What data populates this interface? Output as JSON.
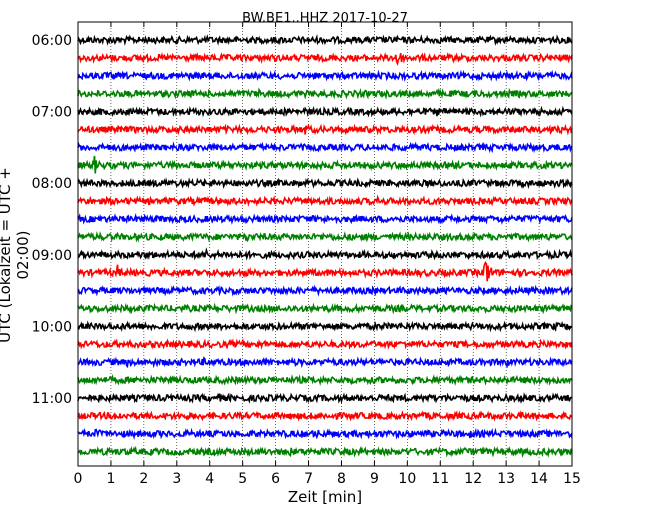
{
  "chart_data": {
    "type": "line",
    "title": "BW.BE1..HHZ 2017-10-27",
    "xlabel": "Zeit  [min]",
    "ylabel": "UTC (Lokalzeit = UTC + 02:00)",
    "xlim": [
      0,
      15
    ],
    "x_ticks": [
      "0",
      "1",
      "2",
      "3",
      "4",
      "5",
      "6",
      "7",
      "8",
      "9",
      "10",
      "11",
      "12",
      "13",
      "14",
      "15"
    ],
    "y_ticks": [
      {
        "label": "06:00",
        "row": 0
      },
      {
        "label": "07:00",
        "row": 4
      },
      {
        "label": "08:00",
        "row": 8
      },
      {
        "label": "09:00",
        "row": 12
      },
      {
        "label": "10:00",
        "row": 16
      },
      {
        "label": "11:00",
        "row": 20
      }
    ],
    "grid": "vertical dotted",
    "color_cycle": [
      "#000000",
      "#ff0000",
      "#0000ff",
      "#008000"
    ],
    "rows": [
      {
        "start": "06:00",
        "events": [
          [
            1.1,
            0.25
          ],
          [
            2.3,
            0.2
          ],
          [
            9.5,
            0.15
          ],
          [
            10.6,
            0.15
          ],
          [
            15.0,
            0.2
          ]
        ]
      },
      {
        "start": "06:15",
        "events": [
          [
            0.3,
            0.2
          ],
          [
            9.65,
            1.0
          ],
          [
            10.4,
            0.15
          ],
          [
            11.4,
            0.15
          ],
          [
            14.6,
            0.2
          ]
        ]
      },
      {
        "start": "06:30",
        "events": [
          [
            1.0,
            0.15
          ],
          [
            5.0,
            0.15
          ],
          [
            10.0,
            0.15
          ],
          [
            11.9,
            0.15
          ],
          [
            14.3,
            0.15
          ]
        ]
      },
      {
        "start": "06:45",
        "events": [
          [
            5.5,
            0.2
          ],
          [
            7.0,
            0.15
          ],
          [
            13.4,
            0.15
          ]
        ]
      },
      {
        "start": "07:00",
        "events": [
          [
            0.7,
            0.2
          ],
          [
            2.6,
            0.15
          ],
          [
            6.1,
            0.2
          ],
          [
            10.9,
            0.25
          ],
          [
            14.5,
            0.2
          ]
        ]
      },
      {
        "start": "07:15",
        "events": [
          [
            6.9,
            0.4
          ],
          [
            9.0,
            0.15
          ],
          [
            11.0,
            0.2
          ],
          [
            14.3,
            0.25
          ]
        ]
      },
      {
        "start": "07:30",
        "events": [
          [
            6.3,
            0.15
          ],
          [
            8.0,
            0.15
          ],
          [
            10.2,
            0.2
          ],
          [
            12.4,
            0.15
          ],
          [
            14.0,
            0.15
          ]
        ]
      },
      {
        "start": "07:45",
        "events": [
          [
            0.5,
            0.6
          ],
          [
            3.2,
            0.15
          ],
          [
            11.4,
            0.15
          ],
          [
            13.8,
            0.15
          ]
        ]
      },
      {
        "start": "08:00",
        "events": [
          [
            1.3,
            0.2
          ],
          [
            3.2,
            0.15
          ],
          [
            8.9,
            0.15
          ],
          [
            10.3,
            0.2
          ],
          [
            15.0,
            0.15
          ]
        ]
      },
      {
        "start": "08:15",
        "events": [
          [
            1.0,
            0.15
          ],
          [
            4.7,
            0.15
          ],
          [
            9.05,
            0.3
          ],
          [
            11.1,
            0.15
          ],
          [
            14.4,
            0.2
          ]
        ]
      },
      {
        "start": "08:30",
        "events": [
          [
            2.5,
            0.15
          ],
          [
            6.2,
            0.15
          ],
          [
            7.9,
            0.2
          ],
          [
            10.7,
            0.15
          ],
          [
            12.8,
            0.3
          ],
          [
            14.8,
            0.25
          ]
        ]
      },
      {
        "start": "08:45",
        "events": [
          [
            1.3,
            0.15
          ],
          [
            5.1,
            0.3
          ],
          [
            7.7,
            0.2
          ],
          [
            12.0,
            0.15
          ]
        ]
      },
      {
        "start": "09:00",
        "events": [
          [
            2.6,
            0.2
          ],
          [
            3.9,
            0.3
          ],
          [
            4.6,
            0.15
          ],
          [
            10.1,
            0.15
          ],
          [
            13.8,
            0.15
          ]
        ]
      },
      {
        "start": "09:15",
        "events": [
          [
            1.2,
            0.45
          ],
          [
            4.0,
            0.15
          ],
          [
            10.4,
            0.15
          ],
          [
            12.35,
            1.4
          ]
        ]
      },
      {
        "start": "09:30",
        "events": [
          [
            0.3,
            0.15
          ],
          [
            5.4,
            0.15
          ],
          [
            10.1,
            0.15
          ],
          [
            12.1,
            0.15
          ],
          [
            13.6,
            0.15
          ]
        ]
      },
      {
        "start": "09:45",
        "events": [
          [
            4.6,
            0.15
          ],
          [
            9.1,
            0.2
          ],
          [
            11.6,
            0.25
          ],
          [
            14.0,
            0.15
          ]
        ]
      },
      {
        "start": "10:00",
        "events": [
          [
            1.2,
            0.15
          ],
          [
            3.5,
            0.15
          ],
          [
            5.95,
            0.4
          ],
          [
            8.5,
            0.15
          ],
          [
            14.5,
            0.25
          ]
        ]
      },
      {
        "start": "10:15",
        "events": [
          [
            1.5,
            0.15
          ],
          [
            5.0,
            0.15
          ],
          [
            9.1,
            0.15
          ],
          [
            10.6,
            0.15
          ]
        ]
      },
      {
        "start": "10:30",
        "events": [
          [
            1.5,
            0.3
          ],
          [
            3.8,
            0.25
          ],
          [
            9.0,
            0.15
          ],
          [
            11.1,
            0.2
          ],
          [
            13.0,
            0.3
          ]
        ]
      },
      {
        "start": "10:45",
        "events": [
          [
            0.5,
            0.15
          ],
          [
            2.6,
            0.3
          ],
          [
            4.9,
            0.2
          ],
          [
            8.1,
            0.15
          ],
          [
            14.0,
            0.15
          ]
        ]
      },
      {
        "start": "11:00",
        "events": [
          [
            1.2,
            0.15
          ],
          [
            4.3,
            0.2
          ],
          [
            5.3,
            0.15
          ],
          [
            9.9,
            0.15
          ],
          [
            12.6,
            0.15
          ]
        ]
      },
      {
        "start": "11:15",
        "events": [
          [
            1.15,
            0.45
          ],
          [
            4.0,
            0.15
          ],
          [
            9.6,
            0.2
          ],
          [
            13.2,
            0.15
          ]
        ]
      },
      {
        "start": "11:30",
        "events": [
          [
            0.55,
            0.4
          ],
          [
            5.2,
            0.15
          ],
          [
            7.2,
            0.4
          ],
          [
            8.3,
            0.2
          ],
          [
            11.9,
            0.2
          ]
        ]
      },
      {
        "start": "11:45",
        "events": [
          [
            5.5,
            0.2
          ],
          [
            6.4,
            0.35
          ],
          [
            11.75,
            0.3
          ],
          [
            13.5,
            0.15
          ]
        ]
      }
    ]
  }
}
